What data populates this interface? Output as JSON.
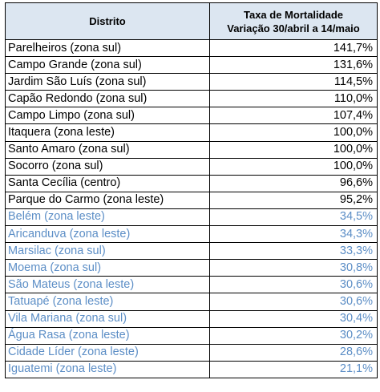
{
  "header": {
    "district": "Distrito",
    "rate_line1": "Taxa de Mortalidade",
    "rate_line2": "Variação 30/abril a 14/maio"
  },
  "colors": {
    "header_background": "#dce6f1",
    "text_primary": "#000000",
    "text_highlight": "#5c8ec6",
    "border": "#000000"
  },
  "rows": [
    {
      "district": "Parelheiros (zona sul)",
      "value": "141,7%",
      "color_group": "black"
    },
    {
      "district": "Campo Grande (zona sul)",
      "value": "131,6%",
      "color_group": "black"
    },
    {
      "district": "Jardim São Luís (zona sul)",
      "value": "114,5%",
      "color_group": "black"
    },
    {
      "district": "Capão Redondo (zona sul)",
      "value": "110,0%",
      "color_group": "black"
    },
    {
      "district": "Campo Limpo (zona sul)",
      "value": "107,4%",
      "color_group": "black"
    },
    {
      "district": "Itaquera (zona leste)",
      "value": "100,0%",
      "color_group": "black"
    },
    {
      "district": "Santo Amaro (zona sul)",
      "value": "100,0%",
      "color_group": "black"
    },
    {
      "district": "Socorro (zona sul)",
      "value": "100,0%",
      "color_group": "black"
    },
    {
      "district": "Santa Cecília (centro)",
      "value": "96,6%",
      "color_group": "black"
    },
    {
      "district": "Parque do Carmo (zona leste)",
      "value": "95,2%",
      "color_group": "black"
    },
    {
      "district": "Belém (zona leste)",
      "value": "34,5%",
      "color_group": "blue"
    },
    {
      "district": "Aricanduva (zona leste)",
      "value": "34,3%",
      "color_group": "blue"
    },
    {
      "district": "Marsilac (zona sul)",
      "value": "33,3%",
      "color_group": "blue"
    },
    {
      "district": "Moema (zona sul)",
      "value": "30,8%",
      "color_group": "blue"
    },
    {
      "district": "São Mateus (zona leste)",
      "value": "30,6%",
      "color_group": "blue"
    },
    {
      "district": "Tatuapé (zona leste)",
      "value": "30,6%",
      "color_group": "blue"
    },
    {
      "district": "Vila Mariana (zona sul)",
      "value": "30,4%",
      "color_group": "blue"
    },
    {
      "district": "Água Rasa (zona leste)",
      "value": "30,2%",
      "color_group": "blue"
    },
    {
      "district": "Cidade Líder (zona leste)",
      "value": "28,6%",
      "color_group": "blue"
    },
    {
      "district": "Iguatemi (zona leste)",
      "value": "21,1%",
      "color_group": "blue"
    }
  ]
}
